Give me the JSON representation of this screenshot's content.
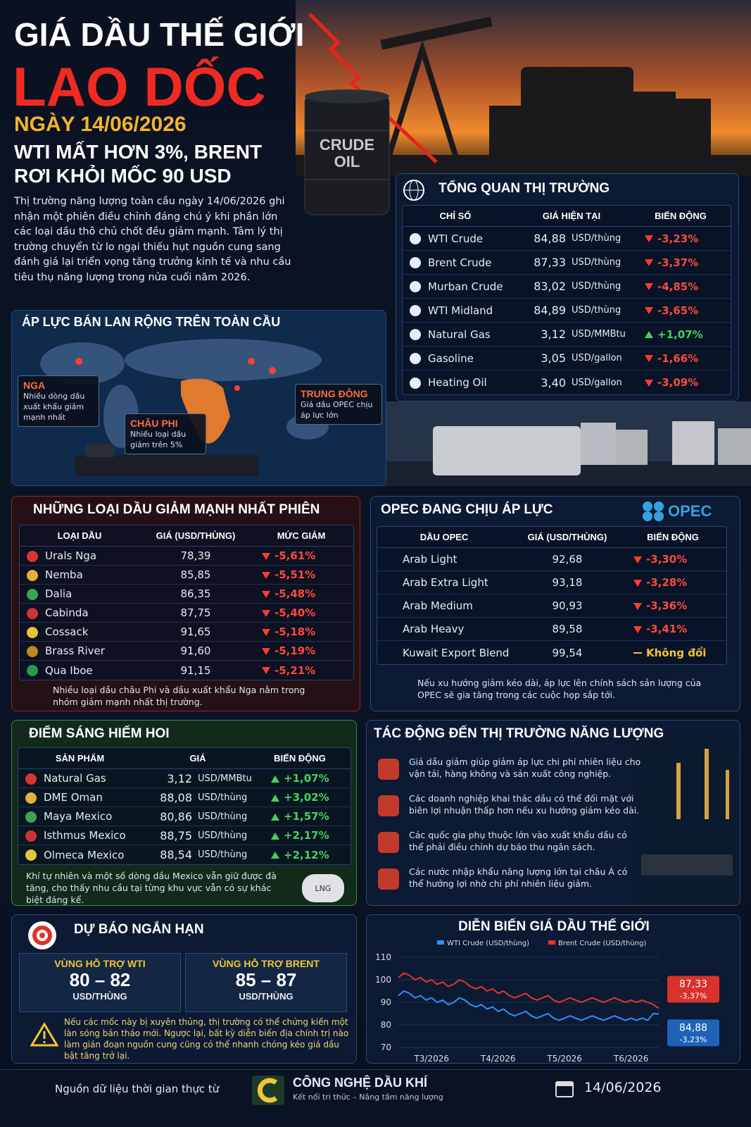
{
  "header": {
    "title_line1": "GIÁ DẦU THẾ GIỚI",
    "title_line2": "LAO DỐC",
    "date": "NGÀY 14/06/2026",
    "subtitle_line1": "WTI MẤT HƠN 3%, BRENT",
    "subtitle_line2": "RƠI KHỎI MỐC 90 USD",
    "intro": "Thị trường năng lượng toàn cầu ngày 14/06/2026 ghi nhận một phiên điều chỉnh đáng chú ý khi phần lớn các loại dầu thô chủ chốt đều giảm mạnh. Tâm lý thị trường chuyển từ lo ngại thiếu hụt nguồn cung sang đánh giá lại triển vọng tăng trưởng kinh tế và nhu cầu tiêu thụ năng lượng trong nửa cuối năm 2026.",
    "barrel_text": [
      "CRUDE",
      "OIL"
    ]
  },
  "overview": {
    "title": "TỔNG QUAN THỊ TRƯỜNG",
    "headers": [
      "CHỈ SỐ",
      "GIÁ HIỆN TẠI",
      "BIẾN ĐỘNG"
    ],
    "rows": [
      {
        "name": "WTI Crude",
        "price": "84,88",
        "unit": "USD/thùng",
        "change": "-3,23%"
      },
      {
        "name": "Brent Crude",
        "price": "87,33",
        "unit": "USD/thùng",
        "change": "-3,37%"
      },
      {
        "name": "Murban Crude",
        "price": "83,02",
        "unit": "USD/thùng",
        "change": "-4,85%"
      },
      {
        "name": "WTI Midland",
        "price": "84,89",
        "unit": "USD/thùng",
        "change": "-3,65%"
      },
      {
        "name": "Natural Gas",
        "price": "3,12",
        "unit": "USD/MMBtu",
        "change": "+1,07%"
      },
      {
        "name": "Gasoline",
        "price": "3,05",
        "unit": "USD/gallon",
        "change": "-1,66%"
      },
      {
        "name": "Heating Oil",
        "price": "3,40",
        "unit": "USD/gallon",
        "change": "-3,09%"
      }
    ]
  },
  "map": {
    "title": "ÁP LỰC BÁN LAN RỘNG TRÊN TOÀN CẦU",
    "callouts": [
      {
        "title": "NGA",
        "text": "Nhiều dòng dầu xuất khẩu giảm mạnh nhất"
      },
      {
        "title": "CHÂU PHI",
        "text": "Nhiều loại dầu giảm trên 5%"
      },
      {
        "title": "TRUNG ĐÔNG",
        "text": "Giá dầu OPEC chịu áp lực lớn"
      }
    ]
  },
  "losers": {
    "title": "NHỮNG LOẠI DẦU GIẢM MẠNH NHẤT PHIÊN",
    "headers": [
      "LOẠI DẦU",
      "GIÁ (USD/THÙNG)",
      "MỨC GIẢM"
    ],
    "rows": [
      {
        "name": "Urals Nga",
        "price": "78,39",
        "change": "-5,61%"
      },
      {
        "name": "Nemba",
        "price": "85,85",
        "change": "-5,51%"
      },
      {
        "name": "Dalia",
        "price": "86,35",
        "change": "-5,48%"
      },
      {
        "name": "Cabinda",
        "price": "87,75",
        "change": "-5,40%"
      },
      {
        "name": "Cossack",
        "price": "91,65",
        "change": "-5,18%"
      },
      {
        "name": "Brass River",
        "price": "91,60",
        "change": "-5,19%"
      },
      {
        "name": "Qua Iboe",
        "price": "91,15",
        "change": "-5,21%"
      }
    ],
    "note": "Nhiều loại dầu châu Phi và dầu xuất khẩu Nga nằm trong nhóm giảm mạnh nhất thị trường."
  },
  "opec": {
    "title": "OPEC ĐANG CHỊU ÁP LỰC",
    "logo": "OPEC",
    "headers": [
      "DẦU OPEC",
      "GIÁ (USD/THÙNG)",
      "BIẾN ĐỘNG"
    ],
    "rows": [
      {
        "name": "Arab Light",
        "price": "92,68",
        "change": "-3,30%"
      },
      {
        "name": "Arab Extra Light",
        "price": "93,18",
        "change": "-3,28%"
      },
      {
        "name": "Arab Medium",
        "price": "90,93",
        "change": "-3,36%"
      },
      {
        "name": "Arab Heavy",
        "price": "89,58",
        "change": "-3,41%"
      },
      {
        "name": "Kuwait Export Blend",
        "price": "99,54",
        "change": "Không đổi"
      }
    ],
    "note": "Nếu xu hướng giảm kéo dài, áp lực lên chính sách sản lượng của OPEC sẽ gia tăng trong các cuộc họp sắp tới."
  },
  "bright": {
    "title": "ĐIỂM SÁNG HIẾM HOI",
    "headers": [
      "SẢN PHẨM",
      "GIÁ",
      "BIẾN ĐỘNG"
    ],
    "rows": [
      {
        "name": "Natural Gas",
        "price": "3,12",
        "unit": "USD/MMBtu",
        "change": "+1,07%"
      },
      {
        "name": "DME Oman",
        "price": "88,08",
        "unit": "USD/thùng",
        "change": "+3,02%"
      },
      {
        "name": "Maya Mexico",
        "price": "80,86",
        "unit": "USD/thùng",
        "change": "+1,57%"
      },
      {
        "name": "Isthmus Mexico",
        "price": "88,75",
        "unit": "USD/thùng",
        "change": "+2,17%"
      },
      {
        "name": "Olmeca Mexico",
        "price": "88,54",
        "unit": "USD/thùng",
        "change": "+2,12%"
      }
    ],
    "note": "Khí tự nhiên và một số dòng dầu Mexico vẫn giữ được đà tăng, cho thấy nhu cầu tại từng khu vực vẫn có sự khác biệt đáng kể.",
    "tank_label": "LNG"
  },
  "impact": {
    "title": "TÁC ĐỘNG ĐẾN THỊ TRƯỜNG NĂNG LƯỢNG",
    "items": [
      "Giá dầu giảm giúp giảm áp lực chi phí nhiên liệu cho vận tải, hàng không và sản xuất công nghiệp.",
      "Các doanh nghiệp khai thác dầu có thể đối mặt với biên lợi nhuận thấp hơn nếu xu hướng giảm kéo dài.",
      "Các quốc gia phụ thuộc lớn vào xuất khẩu dầu có thể phải điều chỉnh dự báo thu ngân sách.",
      "Các nước nhập khẩu năng lượng lớn tại châu Á có thể hưởng lợi nhờ chi phí nhiên liệu giảm."
    ]
  },
  "forecast": {
    "title": "DỰ BÁO NGẮN HẠN",
    "boxes": [
      {
        "label": "VÙNG HỖ TRỢ WTI",
        "range": "80 – 82",
        "unit": "USD/THÙNG"
      },
      {
        "label": "VÙNG HỖ TRỢ BRENT",
        "range": "85 – 87",
        "unit": "USD/THÙNG"
      }
    ],
    "note": "Nếu các mốc này bị xuyên thủng, thị trường có thể chứng kiến một làn sóng bán tháo mới. Ngược lại, bất kỳ diễn biến địa chính trị nào làm gián đoạn nguồn cung cũng có thể nhanh chóng kéo giá dầu bật tăng trở lại."
  },
  "chart_data": {
    "type": "line",
    "title": "DIỄN BIẾN GIÁ DẦU THẾ GIỚI",
    "categories": [
      null,
      null,
      null,
      null,
      null,
      null,
      "T3/2026",
      null,
      null,
      null,
      null,
      null,
      null,
      null,
      null,
      null,
      null,
      null,
      "T4/2026",
      null,
      null,
      null,
      null,
      null,
      null,
      null,
      null,
      null,
      null,
      null,
      "T5/2026",
      null,
      null,
      null,
      null,
      null,
      null,
      null,
      null,
      null,
      null,
      null,
      "T6/2026",
      null,
      null,
      null,
      null,
      null
    ],
    "series": [
      {
        "name": "WTI Crude (USD/thùng)",
        "color": "#2f8fff",
        "values": [
          93,
          95,
          94,
          92,
          93,
          91,
          92,
          90,
          91,
          89,
          90,
          92,
          91,
          89,
          88,
          89,
          87,
          88,
          86,
          87,
          85,
          84,
          85,
          86,
          84,
          83,
          84,
          85,
          83,
          82,
          83,
          84,
          83,
          82,
          83,
          84,
          83,
          82,
          83,
          84,
          83,
          82,
          83,
          82,
          83,
          82,
          85,
          84.88
        ],
        "value_labels": [
          null,
          null,
          null,
          null,
          null,
          null,
          null,
          null,
          null,
          null,
          null,
          null,
          null,
          null,
          null,
          null,
          null,
          null,
          null,
          null,
          null,
          null,
          null,
          null,
          null,
          null,
          null,
          null,
          null,
          null,
          null,
          null,
          null,
          null,
          null,
          null,
          null,
          null,
          null,
          null,
          null,
          null,
          null,
          null,
          null,
          null,
          null,
          "84,88"
        ],
        "change": "-3,23%"
      },
      {
        "name": "Brent Crude (USD/thùng)",
        "color": "#e8322c",
        "values": [
          101,
          103,
          102,
          100,
          101,
          99,
          100,
          98,
          99,
          97,
          98,
          100,
          99,
          97,
          96,
          97,
          95,
          96,
          94,
          95,
          93,
          92,
          93,
          94,
          92,
          91,
          92,
          93,
          91,
          90,
          91,
          92,
          91,
          90,
          91,
          92,
          91,
          90,
          91,
          92,
          91,
          90,
          91,
          90,
          91,
          90,
          89,
          87.33
        ],
        "value_labels": [
          null,
          null,
          null,
          null,
          null,
          null,
          null,
          null,
          null,
          null,
          null,
          null,
          null,
          null,
          null,
          null,
          null,
          null,
          null,
          null,
          null,
          null,
          null,
          null,
          null,
          null,
          null,
          null,
          null,
          null,
          null,
          null,
          null,
          null,
          null,
          null,
          null,
          null,
          null,
          null,
          null,
          null,
          null,
          null,
          null,
          null,
          null,
          "87,33"
        ],
        "change": "-3,37%"
      }
    ],
    "ylim": [
      70,
      110
    ],
    "yticks": [
      70,
      80,
      90,
      100,
      110
    ],
    "legend": "top"
  },
  "footer": {
    "source": "Nguồn dữ liệu thời gian thực từ",
    "brand": "CÔNG NGHỆ DẦU KHÍ",
    "tagline": "Kết nối tri thức – Nâng tầm năng lượng",
    "date": "14/06/2026"
  }
}
